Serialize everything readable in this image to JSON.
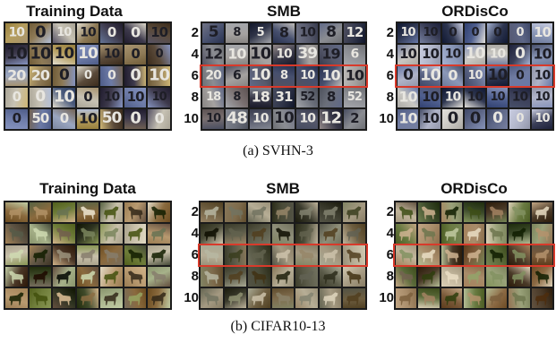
{
  "figures": [
    {
      "caption": "(a)  SVHN-3",
      "kind": "svhn",
      "panels": [
        {
          "title": "Training Data",
          "has_row_labels": false,
          "highlight_row": null,
          "digits": [
            [
              "10",
              "0",
              "10",
              "10",
              "0",
              "0",
              "10"
            ],
            [
              "10",
              "10",
              "10",
              "10",
              "10",
              "0",
              "0"
            ],
            [
              "20",
              "20",
              "0",
              "0",
              "0",
              "0",
              "10"
            ],
            [
              "0",
              "0",
              "10",
              "0",
              "10",
              "10",
              "10"
            ],
            [
              "0",
              "50",
              "0",
              "10",
              "50",
              "0",
              "0"
            ]
          ],
          "palette": [
            "#6c7aa6",
            "#b59d5c",
            "#3e3a4c",
            "#9aa6c0",
            "#5a4a3a",
            "#c7c2b4",
            "#4b5b7d",
            "#8e7a56"
          ]
        },
        {
          "title": "SMB",
          "has_row_labels": true,
          "highlight_row": 2,
          "digits": [
            [
              "5",
              "8",
              "5",
              "8",
              "10",
              "8",
              "12"
            ],
            [
              "12",
              "10",
              "10",
              "10",
              "39",
              "19",
              "6"
            ],
            [
              "20",
              "6",
              "10",
              "8",
              "10",
              "10",
              "10"
            ],
            [
              "18",
              "8",
              "18",
              "31",
              "52",
              "8",
              "52"
            ],
            [
              "10",
              "48",
              "10",
              "10",
              "10",
              "12",
              "2"
            ]
          ],
          "palette": [
            "#47506e",
            "#6b6f7a",
            "#383848",
            "#8b8d92",
            "#575a6c",
            "#a5a2a0",
            "#2f3448",
            "#7a7070"
          ]
        },
        {
          "title": "ORDisCo",
          "has_row_labels": true,
          "highlight_row": 2,
          "digits": [
            [
              "10",
              "10",
              "0",
              "0",
              "0",
              "0",
              "10"
            ],
            [
              "10",
              "10",
              "10",
              "10",
              "10",
              "0",
              "10"
            ],
            [
              "0",
              "10",
              "0",
              "10",
              "10",
              "0",
              "10"
            ],
            [
              "10",
              "10",
              "10",
              "10",
              "10",
              "10",
              "10"
            ],
            [
              "10",
              "10",
              "0",
              "0",
              "0",
              "0",
              "10"
            ]
          ],
          "palette": [
            "#4f5f8f",
            "#8b98b8",
            "#3b3f58",
            "#b0b4c8",
            "#5d6686",
            "#c9c7c2",
            "#6e7aa0",
            "#2e3650"
          ]
        }
      ]
    },
    {
      "caption": "(b)  CIFAR10-13",
      "kind": "cifar",
      "panels": [
        {
          "title": "Training Data",
          "has_row_labels": false,
          "highlight_row": null,
          "palette": [
            "#6f7d3a",
            "#8a6a3e",
            "#3f4a2a",
            "#b89a70",
            "#5e5444",
            "#a7b28a",
            "#4a3626",
            "#c8c0aa",
            "#2e3320"
          ]
        },
        {
          "title": "SMB",
          "has_row_labels": true,
          "highlight_row": 2,
          "palette": [
            "#676a4a",
            "#7e6b4c",
            "#4a4b38",
            "#a59a82",
            "#5a5a48",
            "#8f8f7a",
            "#3a3a2c",
            "#b7ae96",
            "#6e5e40"
          ]
        },
        {
          "title": "ORDisCo",
          "has_row_labels": true,
          "highlight_row": 2,
          "palette": [
            "#6a7b42",
            "#8c6a44",
            "#3c4a2a",
            "#a88c6a",
            "#5b6a3a",
            "#9aa27a",
            "#4a3a28",
            "#c2b69c",
            "#7b5a3a"
          ]
        }
      ]
    }
  ],
  "row_labels": [
    "2",
    "4",
    "6",
    "8",
    "10"
  ]
}
